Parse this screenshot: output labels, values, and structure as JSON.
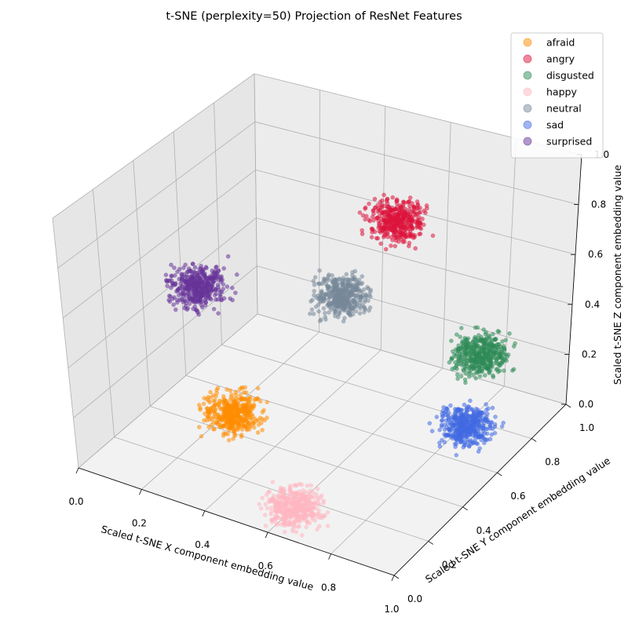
{
  "chart_data": {
    "type": "scatter",
    "projection": "3d",
    "title": "t-SNE (perplexity=50) Projection of ResNet Features",
    "xlabel": "Scaled t-SNE X component embedding value",
    "ylabel": "Scaled t-SNE Y component embedding value",
    "zlabel": "Scaled t-SNE Z component embedding value",
    "xlim": [
      0,
      1
    ],
    "ylim": [
      0,
      1
    ],
    "zlim": [
      0,
      1
    ],
    "x_ticks": [
      "0.0",
      "0.2",
      "0.4",
      "0.6",
      "0.8",
      "1.0"
    ],
    "y_ticks": [
      "0.0",
      "0.2",
      "0.4",
      "0.6",
      "0.8",
      "1.0"
    ],
    "z_ticks": [
      "0.0",
      "0.2",
      "0.4",
      "0.6",
      "0.8",
      "1.0"
    ],
    "grid": true,
    "legend_position": "top-right",
    "series": [
      {
        "name": "afraid",
        "color": "#ff8c00",
        "center": {
          "x": 0.3,
          "y": 0.35,
          "z": 0.12
        }
      },
      {
        "name": "angry",
        "color": "#dc143c",
        "center": {
          "x": 0.5,
          "y": 0.9,
          "z": 0.62
        }
      },
      {
        "name": "disgusted",
        "color": "#2e8b57",
        "center": {
          "x": 0.97,
          "y": 0.55,
          "z": 0.45
        }
      },
      {
        "name": "happy",
        "color": "#ffb6c1",
        "center": {
          "x": 0.6,
          "y": 0.15,
          "z": 0.0
        }
      },
      {
        "name": "neutral",
        "color": "#778899",
        "center": {
          "x": 0.45,
          "y": 0.7,
          "z": 0.42
        }
      },
      {
        "name": "sad",
        "color": "#4169e1",
        "center": {
          "x": 0.98,
          "y": 0.45,
          "z": 0.25
        }
      },
      {
        "name": "surprised",
        "color": "#663399",
        "center": {
          "x": 0.05,
          "y": 0.6,
          "z": 0.38
        }
      }
    ]
  }
}
